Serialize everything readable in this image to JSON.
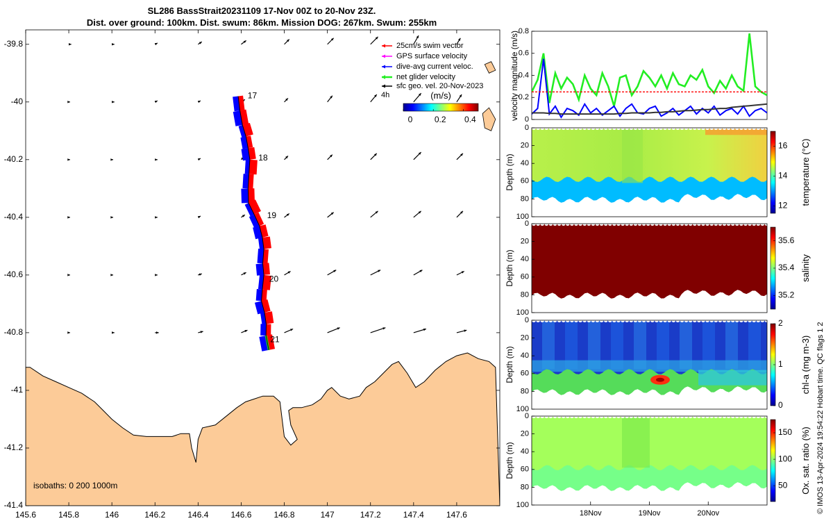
{
  "figure": {
    "title_line1": "SL286 BassStrait20231109 17-Nov 00Z to 20-Nov 23Z.",
    "title_line2": "Dist. over ground: 100km. Dist. swum: 86km. Mission DOG: 267km. Swum: 255km",
    "footer": "© IMOS 13-Apr-2024 19:54:22 Hobart time. QC flags 1  2"
  },
  "colors": {
    "land": "#fccb98",
    "swim": "#ff0000",
    "gps": "#ff00ff",
    "current": "#0000ff",
    "net": "#22ee22",
    "geo": "#000000",
    "coast": "#000000"
  },
  "chart_data": [
    {
      "id": "map",
      "type": "map",
      "xlim": [
        145.6,
        147.8
      ],
      "ylim": [
        -41.4,
        -39.75
      ],
      "xticks": [
        145.6,
        145.8,
        146,
        146.2,
        146.4,
        146.6,
        146.8,
        147,
        147.2,
        147.4,
        147.6
      ],
      "xtick_labels": [
        "145.6",
        "145.8",
        "146",
        "146.2",
        "146.4",
        "146.6",
        "146.8",
        "147",
        "147.2",
        "147.4",
        "147.6"
      ],
      "yticks": [
        -39.8,
        -40,
        -40.2,
        -40.4,
        -40.6,
        -40.8,
        -41,
        -41.2,
        -41.4
      ],
      "ytick_labels": [
        "-39.8",
        "-40",
        "-40.2",
        "-40.4",
        "-40.6",
        "-40.8",
        "-41",
        "-41.2",
        "-41.4"
      ],
      "legend": {
        "position": "top-right",
        "items": [
          {
            "label": "25cm/s swim vector",
            "color": "#ff0000"
          },
          {
            "label": "GPS surface velocity",
            "color": "#ff00ff"
          },
          {
            "label": "dive-avg current veloc.",
            "color": "#0000ff"
          },
          {
            "label": "net glider velocity",
            "color": "#22ee22"
          },
          {
            "label": "sfc geo. vel. 20-Nov-2023",
            "color": "#000000"
          }
        ],
        "extra": "4h"
      },
      "colorbar": {
        "label": "(m/s)",
        "ticks": [
          0,
          0.2,
          0.4
        ],
        "tick_labels": [
          "0",
          "0.2",
          "0.4"
        ],
        "range": [
          0,
          0.5
        ]
      },
      "isobaths_label": "isobaths: 0   200  1000m",
      "track": [
        [
          146.586,
          -39.98
        ],
        [
          146.594,
          -40.03
        ],
        [
          146.606,
          -40.08
        ],
        [
          146.622,
          -40.12
        ],
        [
          146.632,
          -40.16
        ],
        [
          146.64,
          -40.2
        ],
        [
          146.636,
          -40.25
        ],
        [
          146.632,
          -40.3
        ],
        [
          146.634,
          -40.35
        ],
        [
          146.66,
          -40.39
        ],
        [
          146.685,
          -40.43
        ],
        [
          146.698,
          -40.47
        ],
        [
          146.705,
          -40.51
        ],
        [
          146.7,
          -40.56
        ],
        [
          146.705,
          -40.6
        ],
        [
          146.698,
          -40.65
        ],
        [
          146.694,
          -40.69
        ],
        [
          146.708,
          -40.73
        ],
        [
          146.716,
          -40.77
        ],
        [
          146.715,
          -40.81
        ],
        [
          146.728,
          -40.86
        ]
      ],
      "day_labels": [
        {
          "text": "17",
          "lon": 146.63,
          "lat": -39.98
        },
        {
          "text": "18",
          "lon": 146.68,
          "lat": -40.195
        },
        {
          "text": "19",
          "lon": 146.72,
          "lat": -40.395
        },
        {
          "text": "20",
          "lon": 146.73,
          "lat": -40.615
        },
        {
          "text": "21",
          "lon": 146.735,
          "lat": -40.825
        }
      ],
      "geo_arrows": {
        "lons": [
          145.8,
          146,
          146.2,
          146.4,
          146.6,
          146.8,
          147,
          147.2,
          147.4,
          147.6
        ],
        "lats": [
          -39.8,
          -40,
          -40.2,
          -40.4,
          -40.6,
          -40.8
        ],
        "u": [
          [
            0.02,
            0.02,
            0.02,
            0.03,
            0.04,
            0.04,
            0.05,
            0.06,
            0.04,
            0.03
          ],
          [
            0.01,
            0.02,
            0.02,
            0.02,
            0.03,
            0.03,
            0.04,
            0.05,
            0.06,
            0.04
          ],
          [
            0.01,
            0.01,
            0.02,
            0.02,
            0.02,
            0.03,
            0.04,
            0.05,
            0.06,
            0.05
          ],
          [
            0.01,
            0.01,
            0.02,
            0.02,
            0.03,
            0.04,
            0.05,
            0.06,
            0.06,
            0.05
          ],
          [
            0.01,
            0.01,
            0.02,
            0.03,
            0.04,
            0.05,
            0.07,
            0.08,
            0.07,
            0.06
          ],
          [
            0.01,
            0.02,
            0.03,
            0.04,
            0.05,
            0.07,
            0.1,
            0.12,
            0.1,
            0.08
          ]
        ],
        "v": [
          [
            0.0,
            0.0,
            0.01,
            0.02,
            0.03,
            0.04,
            0.05,
            0.06,
            0.07,
            0.05
          ],
          [
            0.0,
            0.0,
            0.01,
            0.01,
            0.02,
            0.03,
            0.05,
            0.06,
            0.07,
            0.06
          ],
          [
            0.0,
            0.0,
            0.0,
            0.01,
            0.02,
            0.03,
            0.04,
            0.05,
            0.06,
            0.05
          ],
          [
            0.0,
            0.0,
            0.0,
            0.01,
            0.02,
            0.03,
            0.04,
            0.05,
            0.05,
            0.05
          ],
          [
            0.0,
            0.0,
            0.0,
            0.01,
            0.02,
            0.03,
            0.04,
            0.04,
            0.04,
            0.03
          ],
          [
            0.0,
            0.0,
            0.0,
            0.01,
            0.02,
            0.03,
            0.04,
            0.04,
            0.03,
            0.02
          ]
        ]
      },
      "coastline": [
        [
          145.6,
          -40.92
        ],
        [
          145.62,
          -40.92
        ],
        [
          145.68,
          -40.95
        ],
        [
          145.74,
          -40.97
        ],
        [
          145.8,
          -40.99
        ],
        [
          145.86,
          -41.01
        ],
        [
          145.92,
          -41.04
        ],
        [
          145.96,
          -41.07
        ],
        [
          146.0,
          -41.1
        ],
        [
          146.05,
          -41.13
        ],
        [
          146.1,
          -41.155
        ],
        [
          146.16,
          -41.16
        ],
        [
          146.22,
          -41.16
        ],
        [
          146.28,
          -41.16
        ],
        [
          146.32,
          -41.15
        ],
        [
          146.36,
          -41.15
        ],
        [
          146.37,
          -41.2
        ],
        [
          146.39,
          -41.25
        ],
        [
          146.4,
          -41.17
        ],
        [
          146.42,
          -41.13
        ],
        [
          146.48,
          -41.12
        ],
        [
          146.53,
          -41.09
        ],
        [
          146.58,
          -41.06
        ],
        [
          146.62,
          -41.04
        ],
        [
          146.66,
          -41.03
        ],
        [
          146.7,
          -41.02
        ],
        [
          146.75,
          -41.02
        ],
        [
          146.78,
          -41.04
        ],
        [
          146.79,
          -41.1
        ],
        [
          146.8,
          -41.16
        ],
        [
          146.83,
          -41.19
        ],
        [
          146.86,
          -41.17
        ],
        [
          146.83,
          -41.12
        ],
        [
          146.82,
          -41.07
        ],
        [
          146.84,
          -41.06
        ],
        [
          146.88,
          -41.06
        ],
        [
          146.93,
          -41.05
        ],
        [
          146.97,
          -41.03
        ],
        [
          147.0,
          -41.0
        ],
        [
          147.02,
          -40.99
        ],
        [
          147.06,
          -41.02
        ],
        [
          147.1,
          -41.03
        ],
        [
          147.15,
          -41.02
        ],
        [
          147.18,
          -40.99
        ],
        [
          147.22,
          -40.97
        ],
        [
          147.26,
          -40.94
        ],
        [
          147.3,
          -40.91
        ],
        [
          147.33,
          -40.9
        ],
        [
          147.37,
          -40.94
        ],
        [
          147.41,
          -40.99
        ],
        [
          147.45,
          -40.97
        ],
        [
          147.5,
          -40.93
        ],
        [
          147.55,
          -40.9
        ],
        [
          147.6,
          -40.88
        ],
        [
          147.65,
          -40.87
        ],
        [
          147.7,
          -40.89
        ],
        [
          147.75,
          -40.9
        ],
        [
          147.78,
          -40.92
        ]
      ],
      "islands": [
        [
          [
            147.72,
            -40.04
          ],
          [
            147.75,
            -40.02
          ],
          [
            147.78,
            -40.06
          ],
          [
            147.76,
            -40.1
          ],
          [
            147.73,
            -40.09
          ]
        ],
        [
          [
            147.73,
            -39.87
          ],
          [
            147.76,
            -39.86
          ],
          [
            147.78,
            -39.89
          ],
          [
            147.75,
            -39.9
          ]
        ]
      ]
    },
    {
      "id": "velocity",
      "type": "line",
      "ylabel": "velocity magnitude (m/s)",
      "xlim": [
        0,
        4
      ],
      "ylim": [
        0,
        0.8
      ],
      "yticks": [
        0,
        0.2,
        0.4,
        0.6,
        0.8
      ],
      "ytick_labels": [
        "0",
        "0.2",
        "0.4",
        "0.6",
        "0.8"
      ],
      "x": [
        0,
        0.1,
        0.2,
        0.3,
        0.4,
        0.5,
        0.6,
        0.7,
        0.8,
        0.9,
        1,
        1.1,
        1.2,
        1.3,
        1.4,
        1.5,
        1.6,
        1.7,
        1.8,
        1.9,
        2,
        2.1,
        2.2,
        2.3,
        2.4,
        2.5,
        2.6,
        2.7,
        2.8,
        2.9,
        3,
        3.1,
        3.2,
        3.3,
        3.4,
        3.5,
        3.6,
        3.7,
        3.8,
        3.9,
        4
      ],
      "series": [
        {
          "color": "#22ee22",
          "values": [
            0.25,
            0.36,
            0.6,
            0.15,
            0.42,
            0.28,
            0.38,
            0.32,
            0.18,
            0.4,
            0.28,
            0.22,
            0.42,
            0.3,
            0.12,
            0.38,
            0.4,
            0.22,
            0.3,
            0.44,
            0.38,
            0.3,
            0.4,
            0.28,
            0.42,
            0.32,
            0.3,
            0.4,
            0.36,
            0.45,
            0.3,
            0.24,
            0.35,
            0.28,
            0.4,
            0.3,
            0.26,
            0.78,
            0.3,
            0.25,
            0.22
          ]
        },
        {
          "color": "#0000ff",
          "values": [
            0.05,
            0.1,
            0.55,
            0.05,
            0.12,
            0.02,
            0.1,
            0.08,
            0.04,
            0.14,
            0.06,
            0.1,
            0.04,
            0.08,
            0.12,
            0.03,
            0.1,
            0.14,
            0.06,
            0.05,
            0.1,
            0.12,
            0.03,
            0.06,
            0.1,
            0.04,
            0.08,
            0.12,
            0.05,
            0.1,
            0.06,
            0.12,
            0.04,
            0.08,
            0.1,
            0.05,
            0.12,
            0.03,
            0.08,
            0.1,
            0.06
          ]
        },
        {
          "color": "#333333",
          "values": [
            0.06,
            0.06,
            0.06,
            0.055,
            0.055,
            0.05,
            0.05,
            0.05,
            0.05,
            0.05,
            0.05,
            0.05,
            0.05,
            0.05,
            0.05,
            0.055,
            0.055,
            0.06,
            0.06,
            0.06,
            0.06,
            0.065,
            0.065,
            0.07,
            0.07,
            0.075,
            0.08,
            0.08,
            0.085,
            0.09,
            0.09,
            0.095,
            0.1,
            0.1,
            0.11,
            0.115,
            0.12,
            0.125,
            0.13,
            0.135,
            0.14
          ]
        },
        {
          "color": "#ff0000",
          "dashed": true,
          "values": [
            0.25,
            0.25,
            0.25,
            0.25,
            0.25,
            0.25,
            0.25,
            0.25,
            0.25,
            0.25,
            0.25,
            0.25,
            0.25,
            0.25,
            0.25,
            0.25,
            0.25,
            0.25,
            0.25,
            0.25,
            0.25,
            0.25,
            0.25,
            0.25,
            0.25,
            0.25,
            0.25,
            0.25,
            0.25,
            0.25,
            0.25,
            0.25,
            0.25,
            0.25,
            0.25,
            0.25,
            0.25,
            0.25,
            0.25,
            0.25,
            0.25
          ]
        }
      ]
    },
    {
      "id": "temperature",
      "type": "heatmap",
      "ylabel": "Depth (m)",
      "colorbar_label": "temperature (°C)",
      "clim": [
        11.5,
        17
      ],
      "cticks": [
        12,
        14,
        16
      ],
      "ctick_labels": [
        "12",
        "14",
        "16"
      ],
      "ylim": [
        0,
        100
      ],
      "yticks": [
        0,
        20,
        40,
        60,
        80,
        100
      ],
      "ytick_labels": [
        "0",
        "20",
        "40",
        "60",
        "80",
        "100"
      ],
      "surface_value": 15.0,
      "bottom_value": 13.2,
      "depths": [
        0,
        80
      ],
      "value_at_bottom_layer": 13.0
    },
    {
      "id": "salinity",
      "type": "heatmap",
      "ylabel": "Depth (m)",
      "colorbar_label": "salinity",
      "clim": [
        35.1,
        35.7
      ],
      "cticks": [
        35.2,
        35.4,
        35.6
      ],
      "ctick_labels": [
        "35.2",
        "35.4",
        "35.6"
      ],
      "ylim": [
        0,
        100
      ],
      "yticks": [
        0,
        20,
        40,
        60,
        80,
        100
      ],
      "ytick_labels": [
        "0",
        "20",
        "40",
        "60",
        "80",
        "100"
      ],
      "surface_value": 35.7,
      "bottom_value": 35.7
    },
    {
      "id": "chla",
      "type": "heatmap",
      "ylabel": "Depth (m)",
      "colorbar_label": "chl-a (mg m-3)",
      "clim": [
        0,
        2
      ],
      "cticks": [
        0,
        1,
        2
      ],
      "ctick_labels": [
        "0",
        "1",
        "2"
      ],
      "ylim": [
        0,
        100
      ],
      "yticks": [
        0,
        20,
        40,
        60,
        80,
        100
      ],
      "ytick_labels": [
        "0",
        "20",
        "40",
        "60",
        "80",
        "100"
      ],
      "surface_value": 0.15,
      "bottom_value": 0.95
    },
    {
      "id": "oxygen",
      "type": "heatmap",
      "ylabel": "Depth (m)",
      "colorbar_label": "Ox. sat. ratio (%)",
      "clim": [
        20,
        175
      ],
      "cticks": [
        50,
        100,
        150
      ],
      "ctick_labels": [
        "50",
        "100",
        "150"
      ],
      "ylim": [
        0,
        100
      ],
      "yticks": [
        0,
        20,
        40,
        60,
        80,
        100
      ],
      "ytick_labels": [
        "0",
        "20",
        "40",
        "60",
        "80",
        "100"
      ],
      "surface_value": 103,
      "bottom_value": 96,
      "xticks": [
        1,
        2,
        3
      ],
      "xtick_labels": [
        "18Nov",
        "19Nov",
        "20Nov"
      ],
      "xlim": [
        0,
        4
      ]
    }
  ]
}
